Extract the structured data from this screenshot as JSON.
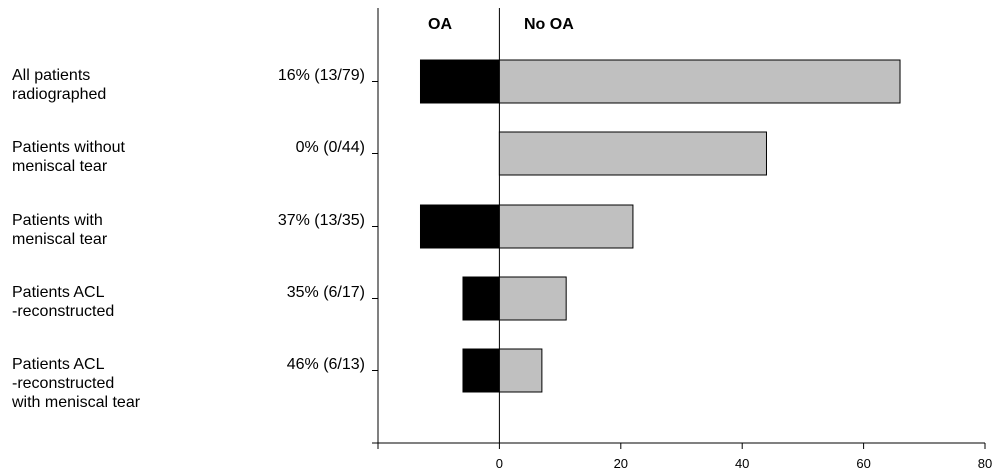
{
  "chart_data": {
    "type": "bar",
    "orientation": "horizontal",
    "header_left": "OA",
    "header_right": "No OA",
    "categories": [
      "All patients\nradiographed",
      "Patients without\nmeniscal tear",
      "Patients with\nmeniscal tear",
      "Patients ACL\n-reconstructed",
      "Patients ACL\n-reconstructed\nwith meniscal tear"
    ],
    "percent_labels": [
      "16% (13/79)",
      "0% (0/44)",
      "37% (13/35)",
      "35% (6/17)",
      "46% (6/13)"
    ],
    "series": [
      {
        "name": "OA",
        "values": [
          -13,
          0,
          -13,
          -6,
          -6
        ],
        "color": "#000000"
      },
      {
        "name": "No OA",
        "values": [
          66,
          44,
          22,
          11,
          7
        ],
        "color": "#c0c0c0"
      }
    ],
    "xlim": [
      -20,
      80
    ],
    "xticks": [
      0,
      20,
      40,
      60,
      80
    ],
    "xticklabels": [
      "0",
      "20",
      "40",
      "60",
      "80"
    ]
  }
}
